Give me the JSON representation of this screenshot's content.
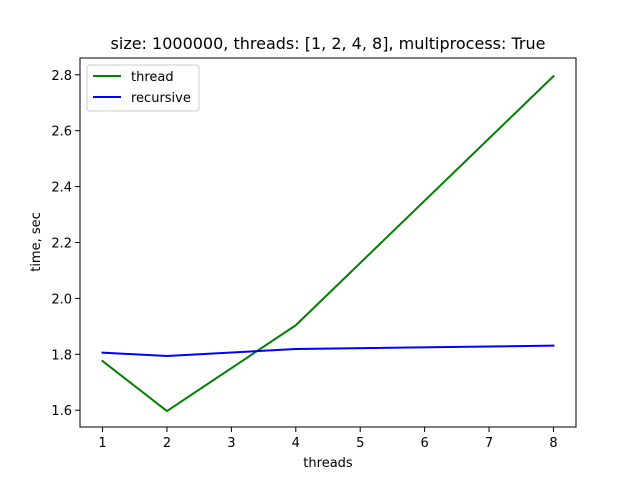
{
  "chart_data": {
    "type": "line",
    "title": "size: 1000000, threads: [1, 2, 4, 8], multiprocess: True",
    "xlabel": "threads",
    "ylabel": "time, sec",
    "x": [
      1,
      2,
      4,
      8
    ],
    "xlim": [
      0.65,
      8.35
    ],
    "ylim": [
      1.54,
      2.86
    ],
    "xticks": [
      1,
      2,
      3,
      4,
      5,
      6,
      7,
      8
    ],
    "yticks": [
      1.6,
      1.8,
      2.0,
      2.2,
      2.4,
      2.6,
      2.8
    ],
    "ytick_labels": [
      "1.6",
      "1.8",
      "2.0",
      "2.2",
      "2.4",
      "2.6",
      "2.8"
    ],
    "grid": false,
    "legend_position": "top-left",
    "series": [
      {
        "name": "thread",
        "color": "#008000",
        "values": [
          1.776,
          1.597,
          1.904,
          2.795
        ]
      },
      {
        "name": "recursive",
        "color": "#0000ff",
        "values": [
          1.806,
          1.794,
          1.819,
          1.831
        ]
      }
    ]
  }
}
